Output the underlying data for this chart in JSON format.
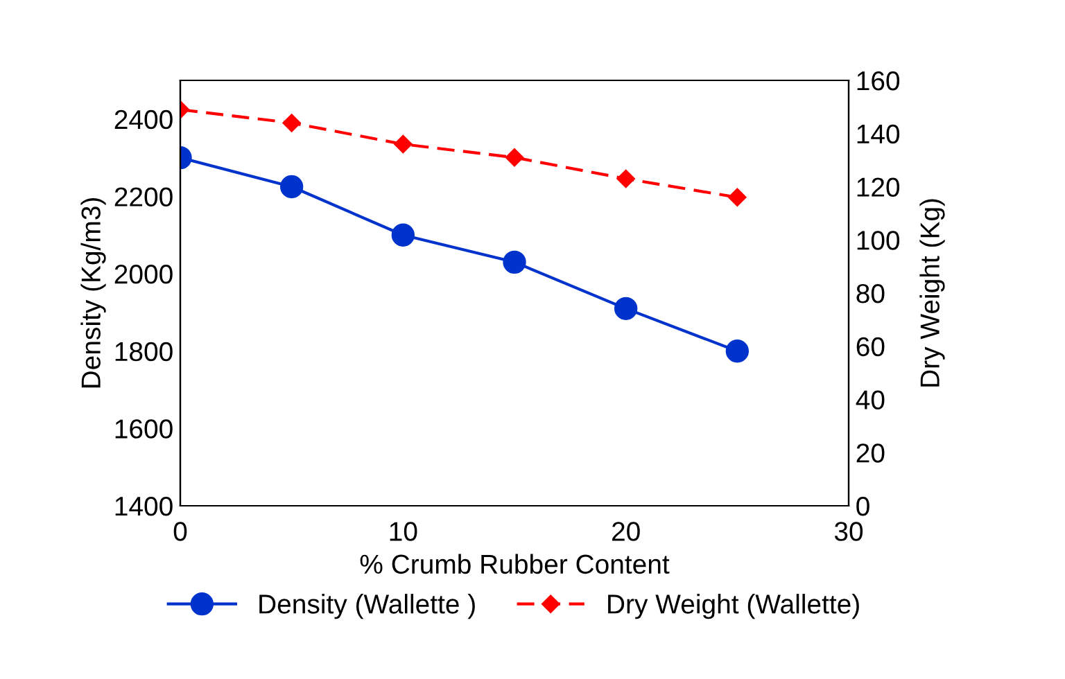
{
  "chart_data": {
    "type": "line",
    "xlabel": "% Crumb Rubber Content",
    "ylabel": "Density (Kg/m3)",
    "y2label": "Dry Weight (Kg)",
    "x": [
      0,
      5,
      10,
      15,
      20,
      25
    ],
    "series": [
      {
        "name": "Density (Wallette )",
        "color": "#0033cc",
        "values": [
          2300,
          2225,
          2100,
          2030,
          1910,
          1800
        ],
        "marker": "circle",
        "line_style": "solid"
      },
      {
        "name": "Dry Weight (Wallette)",
        "color": "#ff0000",
        "values": [
          149,
          144,
          136,
          131,
          123,
          116
        ],
        "marker": "diamond",
        "line_style": "dashed",
        "axis": "y2"
      }
    ],
    "xlim": [
      0,
      30
    ],
    "xticks": [
      0,
      10,
      20,
      30
    ],
    "ylim": [
      1400,
      2500
    ],
    "yticks": [
      1400,
      1600,
      1800,
      2000,
      2200,
      2400
    ],
    "y2lim": [
      0,
      160
    ],
    "y2ticks": [
      0,
      20,
      40,
      60,
      80,
      100,
      120,
      140,
      160
    ],
    "grid": false,
    "legend": "bottom"
  }
}
